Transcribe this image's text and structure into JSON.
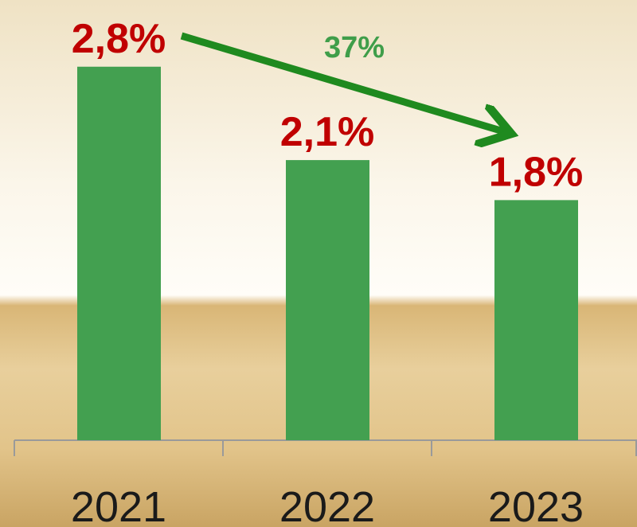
{
  "chart_data": {
    "type": "bar",
    "categories": [
      "2021",
      "2022",
      "2023"
    ],
    "values": [
      2.8,
      2.1,
      1.8
    ],
    "value_labels": [
      "2,8%",
      "2,1%",
      "1,8%"
    ],
    "color": "#43a050",
    "label_color": "#c00000",
    "ylim": [
      0,
      3.3
    ],
    "annotation": "37%"
  }
}
